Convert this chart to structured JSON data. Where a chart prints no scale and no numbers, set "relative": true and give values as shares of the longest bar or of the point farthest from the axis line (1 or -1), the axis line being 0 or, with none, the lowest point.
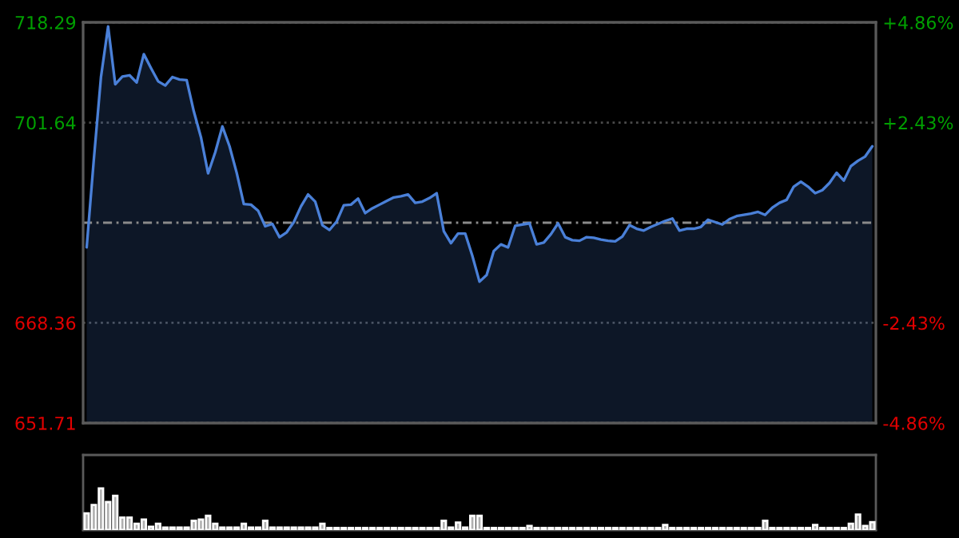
{
  "chart_data": [
    {
      "type": "area",
      "categories": [
        null,
        null,
        null,
        null,
        null,
        null,
        null,
        null,
        null,
        null,
        null,
        null,
        null,
        null,
        null,
        null,
        null,
        null,
        null,
        null,
        null,
        null,
        null,
        null,
        null,
        null,
        null,
        null,
        null,
        null,
        null,
        null,
        null,
        null,
        null,
        null,
        null,
        null,
        null,
        null,
        null,
        null,
        null,
        null,
        null,
        null,
        null,
        null,
        null,
        null,
        null,
        null,
        null,
        null,
        null,
        null,
        null,
        null,
        null,
        null,
        null,
        null,
        null,
        null,
        null,
        null,
        null,
        null,
        null,
        null,
        null,
        null,
        null,
        null,
        null,
        null,
        null,
        null,
        null,
        null,
        null,
        null,
        null,
        null,
        null,
        null,
        null,
        null,
        null,
        null,
        null,
        null,
        null,
        null,
        null,
        null,
        null,
        null,
        null,
        null,
        null,
        null,
        null,
        null,
        null,
        null,
        null,
        null,
        null,
        null,
        null
      ],
      "series": [
        {
          "color": "#4a80d8",
          "values": [
            680.9,
            695.5,
            709.2,
            717.6,
            708.0,
            709.3,
            709.5,
            708.3,
            713.0,
            710.7,
            708.5,
            707.8,
            709.2,
            708.8,
            708.7,
            703.5,
            699.2,
            693.2,
            696.7,
            701.0,
            697.7,
            693.3,
            688.1,
            688.0,
            687.0,
            684.4,
            684.8,
            682.6,
            683.4,
            685.1,
            687.7,
            689.7,
            688.5,
            684.6,
            683.8,
            685.2,
            687.9,
            688.0,
            689.0,
            686.6,
            687.4,
            688.0,
            688.6,
            689.2,
            689.4,
            689.7,
            688.3,
            688.5,
            689.1,
            689.9,
            683.6,
            681.6,
            683.2,
            683.2,
            679.5,
            675.2,
            676.3,
            680.3,
            681.4,
            680.9,
            684.5,
            684.7,
            684.9,
            681.4,
            681.7,
            683.1,
            684.9,
            682.6,
            682.1,
            682.0,
            682.6,
            682.5,
            682.2,
            682.0,
            681.9,
            682.7,
            684.6,
            684.0,
            683.7,
            684.3,
            684.8,
            685.3,
            685.7,
            683.7,
            684.0,
            684.0,
            684.3,
            685.5,
            685.1,
            684.7,
            685.6,
            686.1,
            686.3,
            686.5,
            686.8,
            686.3,
            687.5,
            688.3,
            688.8,
            691.0,
            691.8,
            691.0,
            689.9,
            690.4,
            691.6,
            693.3,
            692.0,
            694.4,
            695.3,
            696.0,
            697.7
          ]
        }
      ],
      "ylim": [
        651.71,
        718.29
      ],
      "yticks": [
        651.71,
        668.36,
        701.64,
        718.29
      ],
      "y2lim": [
        -4.86,
        4.86
      ],
      "y2ticks": [
        {
          "value": -4.86,
          "label": "-4.86%"
        },
        {
          "value": -2.43,
          "label": "-2.43%"
        },
        {
          "value": 2.43,
          "label": "+2.43%"
        },
        {
          "value": 4.86,
          "label": "+4.86%"
        }
      ],
      "ref_lines": [
        {
          "axis": "y",
          "value": 685.0,
          "label": null,
          "color": "#8a8a8a",
          "line_style": "dashed"
        }
      ],
      "grid": "y",
      "tick_labels": "y"
    },
    {
      "type": "bar",
      "relative": true,
      "categories": [
        null,
        null,
        null,
        null,
        null,
        null,
        null,
        null,
        null,
        null,
        null,
        null,
        null,
        null,
        null,
        null,
        null,
        null,
        null,
        null,
        null,
        null,
        null,
        null,
        null,
        null,
        null,
        null,
        null,
        null,
        null,
        null,
        null,
        null,
        null,
        null,
        null,
        null,
        null,
        null,
        null,
        null,
        null,
        null,
        null,
        null,
        null,
        null,
        null,
        null,
        null,
        null,
        null,
        null,
        null,
        null,
        null,
        null,
        null,
        null,
        null,
        null,
        null,
        null,
        null,
        null,
        null,
        null,
        null,
        null,
        null,
        null,
        null,
        null,
        null,
        null,
        null,
        null,
        null,
        null,
        null,
        null,
        null,
        null,
        null,
        null,
        null,
        null,
        null,
        null,
        null,
        null,
        null,
        null,
        null,
        null,
        null,
        null,
        null,
        null,
        null,
        null,
        null,
        null,
        null,
        null,
        null,
        null,
        null,
        null,
        null
      ],
      "series": [
        {
          "color": "#b0b0b0",
          "values": [
            0.4,
            0.6,
            1,
            0.67,
            0.82,
            0.3,
            0.3,
            0.15,
            0.25,
            0.08,
            0.15,
            0.06,
            0.06,
            0.06,
            0.06,
            0.22,
            0.25,
            0.34,
            0.15,
            0.06,
            0.06,
            0.06,
            0.15,
            0.06,
            0.06,
            0.22,
            0.06,
            0.06,
            0.06,
            0.06,
            0.06,
            0.06,
            0.06,
            0.15,
            0.05,
            0.05,
            0.05,
            0.05,
            0.05,
            0.05,
            0.05,
            0.05,
            0.05,
            0.05,
            0.05,
            0.05,
            0.05,
            0.05,
            0.05,
            0.05,
            0.22,
            0.06,
            0.18,
            0.06,
            0.34,
            0.34,
            0.05,
            0.05,
            0.05,
            0.05,
            0.05,
            0.05,
            0.1,
            0.05,
            0.05,
            0.05,
            0.05,
            0.05,
            0.05,
            0.05,
            0.05,
            0.05,
            0.05,
            0.05,
            0.05,
            0.05,
            0.05,
            0.05,
            0.05,
            0.05,
            0.05,
            0.12,
            0.05,
            0.05,
            0.05,
            0.05,
            0.05,
            0.05,
            0.05,
            0.05,
            0.05,
            0.05,
            0.05,
            0.05,
            0.05,
            0.22,
            0.05,
            0.05,
            0.05,
            0.05,
            0.05,
            0.05,
            0.12,
            0.05,
            0.05,
            0.05,
            0.05,
            0.15,
            0.37,
            0.1,
            0.19
          ]
        }
      ],
      "tick_labels": false
    }
  ]
}
